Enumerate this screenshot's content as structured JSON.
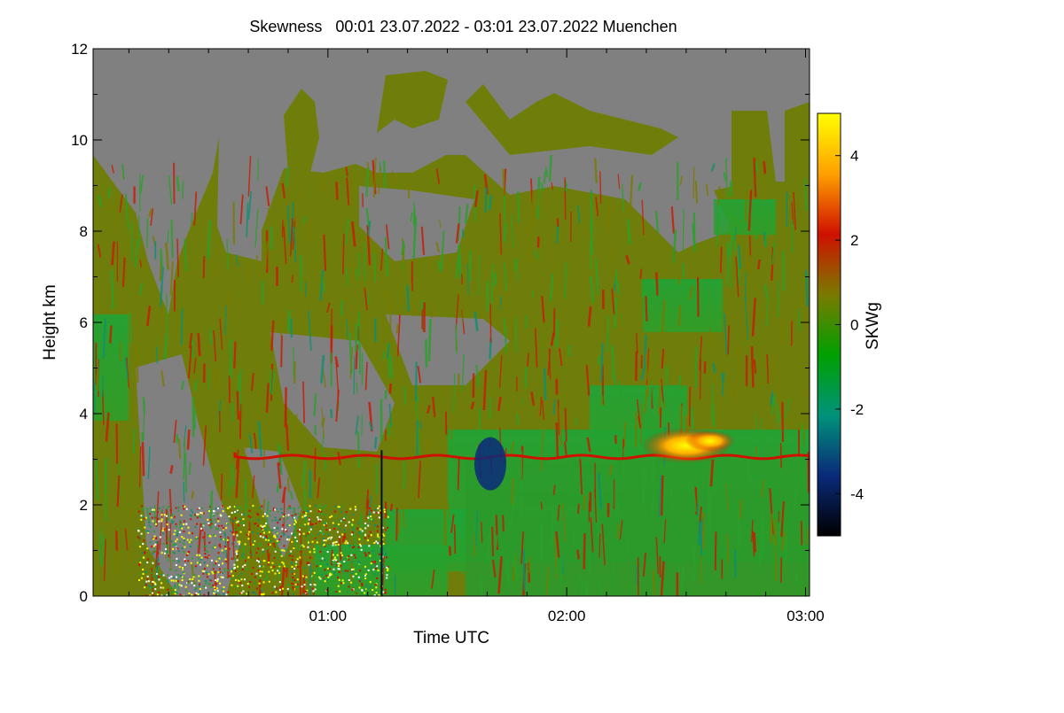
{
  "chart_data": {
    "type": "heatmap",
    "title": "Skewness   00:01 23.07.2022 - 03:01 23.07.2022 Muenchen",
    "xlabel": "Time UTC",
    "ylabel": "Height km",
    "colorbar_label": "SKWg",
    "x_range_hours": [
      0.0167,
      3.0167
    ],
    "ylim": [
      0,
      12
    ],
    "x_ticks": [
      {
        "label": "01:00",
        "hours": 1
      },
      {
        "label": "02:00",
        "hours": 2
      },
      {
        "label": "03:00",
        "hours": 3
      }
    ],
    "y_ticks": [
      0,
      2,
      4,
      6,
      8,
      10,
      12
    ],
    "colorbar_range": [
      -5,
      5
    ],
    "colorbar_ticks": [
      -4,
      -2,
      0,
      2,
      4
    ],
    "no_data_color": "#808080",
    "colormap": [
      "#000000",
      "#0a2a7a",
      "#00937a",
      "#00a000",
      "#7a7a00",
      "#d01000",
      "#ffa000",
      "#ffff00"
    ]
  }
}
